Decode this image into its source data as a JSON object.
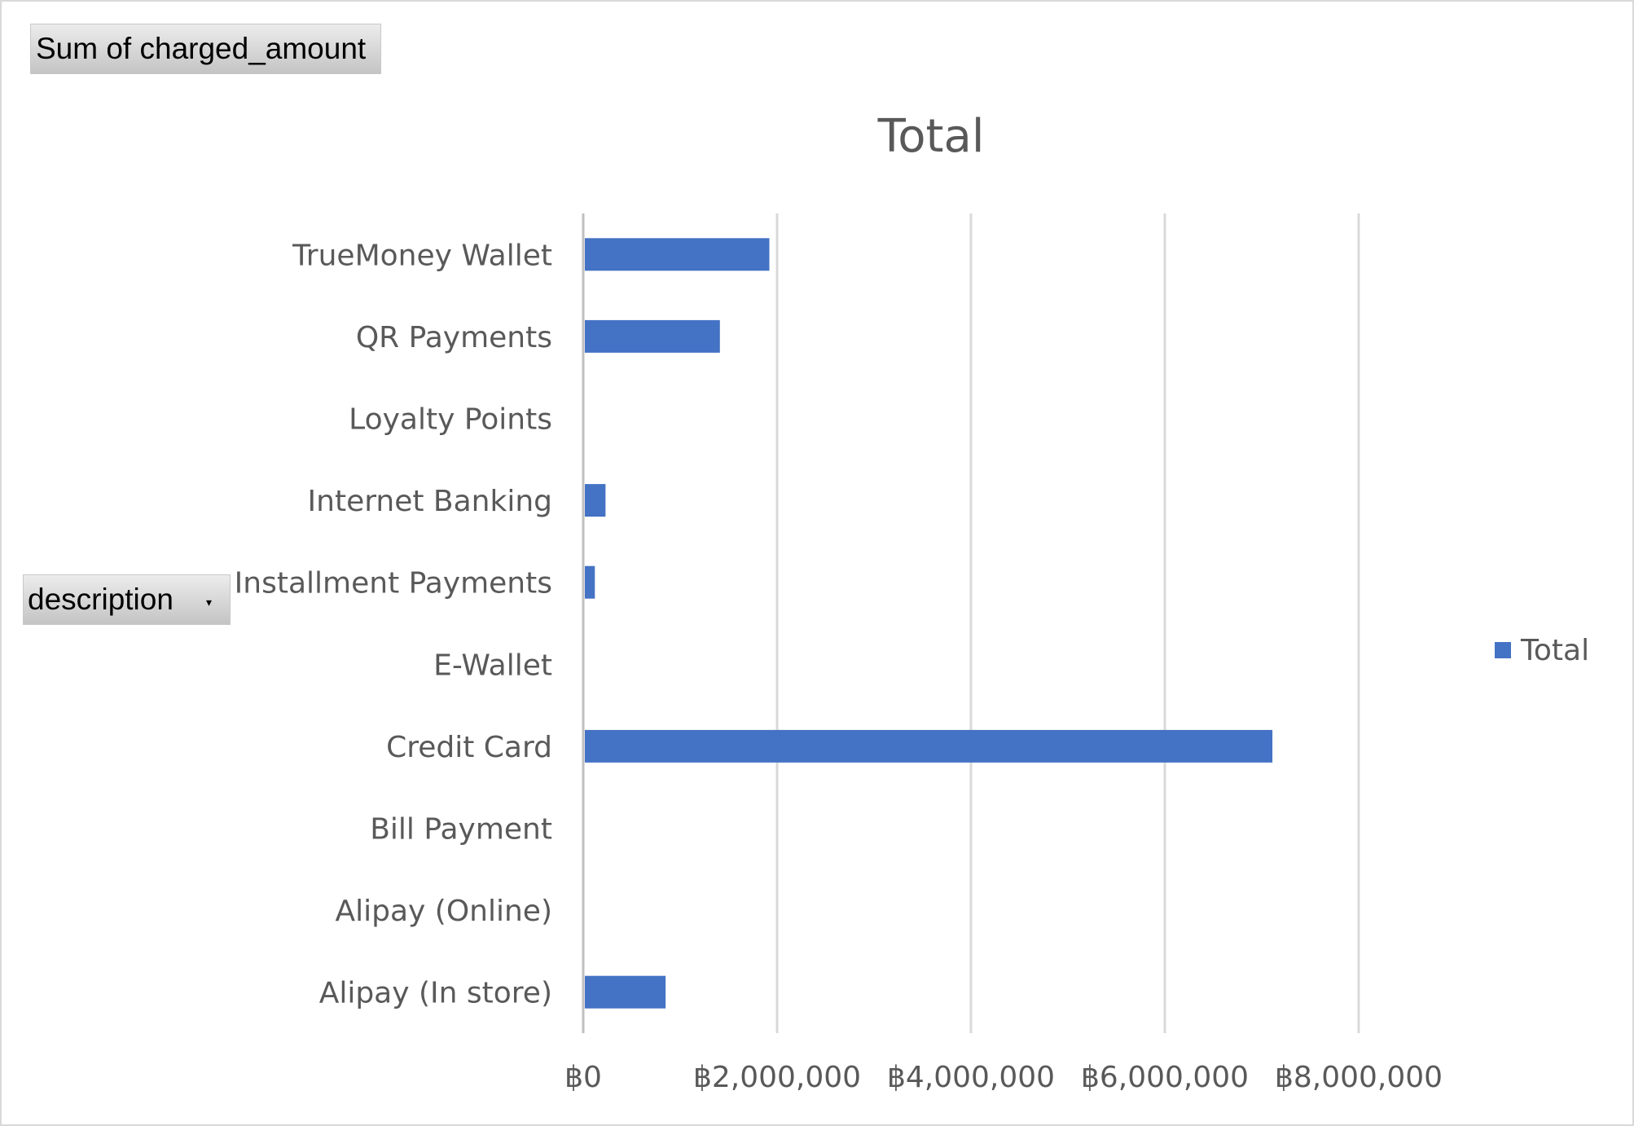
{
  "pivot_fields": {
    "values_label": "Sum of charged_amount",
    "axis_label": "description",
    "axis_dropdown_glyph": "▾"
  },
  "chart_data": {
    "type": "bar",
    "orientation": "horizontal",
    "title": "Total",
    "categories": [
      "TrueMoney Wallet",
      "QR Payments",
      "Loyalty Points",
      "Internet Banking",
      "Installment Payments",
      "E-Wallet",
      "Credit Card",
      "Bill Payment",
      "Alipay (Online)",
      "Alipay (In store)"
    ],
    "series": [
      {
        "name": "Total",
        "color": "#4472c4",
        "values": [
          1920000,
          1410000,
          0,
          230000,
          120000,
          0,
          7110000,
          0,
          0,
          850000
        ]
      }
    ],
    "x_ticks": [
      0,
      2000000,
      4000000,
      6000000,
      8000000
    ],
    "x_tick_labels": [
      "฿0",
      "฿2,000,000",
      "฿4,000,000",
      "฿6,000,000",
      "฿8,000,000"
    ],
    "xlim": [
      0,
      8000000
    ],
    "grid": true,
    "legend_position": "right",
    "xlabel": "",
    "ylabel": ""
  }
}
